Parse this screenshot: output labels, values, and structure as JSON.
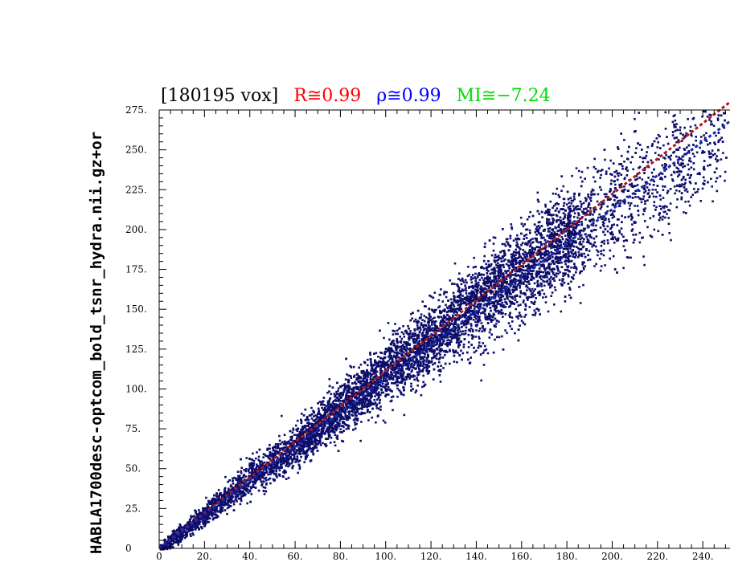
{
  "chart_data": {
    "type": "scatter",
    "title_segments": [
      {
        "text": "[180195 vox]",
        "color": "#000000"
      },
      {
        "text": "R≅0.99",
        "color": "#ff0000"
      },
      {
        "text": "ρ≅0.99",
        "color": "#0000ff"
      },
      {
        "text": "MI≅−7.24",
        "color": "#00dd00"
      }
    ],
    "ylabel": "HABLA1700desc-optcom_bold_tsnr_hydra.nii.gz+or",
    "xlabel": "",
    "xlim": [
      0,
      252
    ],
    "ylim": [
      0,
      275
    ],
    "x_ticks": [
      "0",
      "20.",
      "40.",
      "60.",
      "80.",
      "100.",
      "120.",
      "140.",
      "160.",
      "180.",
      "200.",
      "220.",
      "240."
    ],
    "x_tick_values": [
      0,
      20,
      40,
      60,
      80,
      100,
      120,
      140,
      160,
      180,
      200,
      220,
      240
    ],
    "y_ticks": [
      "0",
      "25.",
      "50.",
      "75.",
      "100.",
      "125.",
      "150.",
      "175.",
      "200.",
      "225.",
      "250.",
      "275."
    ],
    "y_tick_values": [
      0,
      25,
      50,
      75,
      100,
      125,
      150,
      175,
      200,
      225,
      250,
      275
    ],
    "grid": false,
    "point_color": "#0d0d6b",
    "fit_lines": [
      {
        "color": "#aa1a1a",
        "x": [
          0,
          252
        ],
        "y": [
          0,
          280
        ]
      },
      {
        "color": "#1a2aa8",
        "x": [
          0,
          252
        ],
        "y": [
          0,
          268
        ]
      }
    ],
    "scatter_summary": {
      "n_voxels": 180195,
      "density_ridge": [
        [
          0,
          0
        ],
        [
          20,
          22
        ],
        [
          40,
          45
        ],
        [
          60,
          64
        ],
        [
          80,
          88
        ],
        [
          100,
          110
        ],
        [
          120,
          132
        ],
        [
          140,
          155
        ],
        [
          160,
          175
        ],
        [
          180,
          195
        ],
        [
          200,
          213
        ],
        [
          220,
          235
        ],
        [
          240,
          255
        ]
      ]
    }
  }
}
